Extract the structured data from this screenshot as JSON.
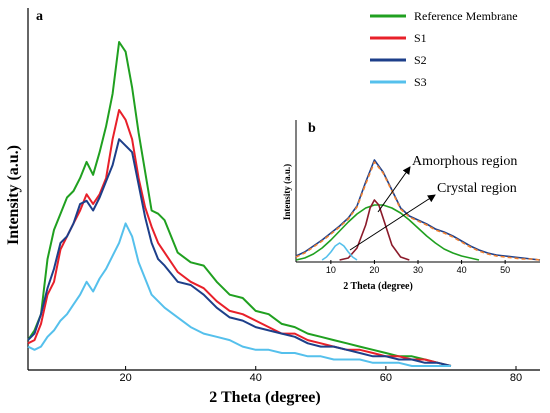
{
  "chart_data": [
    {
      "panel": "a",
      "type": "line",
      "xlabel": "2 Theta (degree)",
      "ylabel": "Intensity (a.u.)",
      "xlim": [
        5,
        80
      ],
      "xticks": [
        20,
        40,
        60,
        80
      ],
      "ylim": [
        0,
        100
      ],
      "grid": false,
      "legend_position": "top-right",
      "series": [
        {
          "name": "Reference Membrane",
          "color": "#20a020",
          "x": [
            5,
            6,
            7,
            8,
            9,
            10,
            11,
            12,
            13,
            14,
            15,
            16,
            17,
            18,
            19,
            20,
            21,
            22,
            23,
            24,
            25,
            26,
            28,
            30,
            32,
            34,
            36,
            38,
            40,
            42,
            44,
            46,
            48,
            50,
            52,
            54,
            56,
            58,
            60,
            62,
            64,
            66,
            68,
            70
          ],
          "y": [
            8,
            11,
            16,
            33,
            42,
            47,
            52,
            54,
            58,
            63,
            59,
            66,
            74,
            84,
            100,
            97,
            86,
            72,
            60,
            48,
            47,
            45,
            35,
            32,
            31,
            26,
            22,
            21,
            17,
            16,
            13,
            12,
            10,
            9,
            8,
            7,
            6,
            5,
            4,
            3,
            3,
            2,
            1,
            0
          ]
        },
        {
          "name": "S1",
          "color": "#e8202a",
          "x": [
            5,
            6,
            7,
            8,
            9,
            10,
            11,
            12,
            13,
            14,
            15,
            16,
            17,
            18,
            19,
            20,
            21,
            22,
            23,
            24,
            25,
            26,
            28,
            30,
            32,
            34,
            36,
            38,
            40,
            42,
            44,
            46,
            48,
            50,
            52,
            54,
            56,
            58,
            60,
            62,
            64,
            66,
            68,
            70
          ],
          "y": [
            7,
            8,
            13,
            22,
            26,
            36,
            40,
            44,
            48,
            53,
            50,
            53,
            58,
            70,
            79,
            76,
            70,
            58,
            49,
            43,
            38,
            35,
            29,
            26,
            24,
            20,
            17,
            16,
            14,
            12,
            10,
            10,
            8,
            7,
            6,
            5,
            5,
            4,
            3,
            3,
            2,
            2,
            1,
            0
          ]
        },
        {
          "name": "S2",
          "color": "#1d3f8a",
          "x": [
            5,
            6,
            7,
            8,
            9,
            10,
            11,
            12,
            13,
            14,
            15,
            16,
            17,
            18,
            19,
            20,
            21,
            22,
            23,
            24,
            25,
            26,
            28,
            30,
            32,
            34,
            36,
            38,
            40,
            42,
            44,
            46,
            48,
            50,
            52,
            54,
            56,
            58,
            60,
            62,
            64,
            66,
            68,
            70
          ],
          "y": [
            8,
            10,
            16,
            24,
            30,
            38,
            40,
            44,
            50,
            51,
            48,
            52,
            57,
            62,
            70,
            68,
            66,
            56,
            46,
            38,
            33,
            31,
            26,
            25,
            22,
            18,
            15,
            14,
            12,
            11,
            10,
            9,
            7,
            6,
            6,
            5,
            4,
            3,
            3,
            2,
            2,
            1,
            1,
            0
          ]
        },
        {
          "name": "S3",
          "color": "#55c0ec",
          "x": [
            5,
            6,
            7,
            8,
            9,
            10,
            11,
            12,
            13,
            14,
            15,
            16,
            17,
            18,
            19,
            20,
            21,
            22,
            23,
            24,
            25,
            26,
            28,
            30,
            32,
            34,
            36,
            38,
            40,
            42,
            44,
            46,
            48,
            50,
            52,
            54,
            56,
            58,
            60,
            62,
            64,
            66,
            68,
            70
          ],
          "y": [
            6,
            5,
            6,
            9,
            11,
            14,
            16,
            19,
            22,
            26,
            23,
            27,
            30,
            34,
            38,
            44,
            40,
            32,
            27,
            22,
            20,
            18,
            15,
            12,
            10,
            9,
            8,
            6,
            5,
            5,
            4,
            4,
            3,
            3,
            2,
            2,
            2,
            1,
            1,
            1,
            0,
            0,
            0,
            0
          ]
        }
      ]
    },
    {
      "panel": "b",
      "type": "line",
      "xlabel": "2 Theta (degree)",
      "ylabel": "Intensity (a.u.)",
      "xlim": [
        2,
        58
      ],
      "xticks": [
        10,
        20,
        30,
        40,
        50
      ],
      "ylim": [
        0,
        100
      ],
      "grid": false,
      "annotations": [
        "Amorphous region",
        "Crystal region"
      ],
      "series": [
        {
          "color": "#1d3f8a",
          "x": [
            2,
            4,
            6,
            8,
            10,
            12,
            14,
            16,
            18,
            20,
            22,
            24,
            26,
            28,
            30,
            32,
            34,
            36,
            38,
            40,
            42,
            44,
            46,
            48,
            50,
            52,
            54,
            56,
            58
          ],
          "y": [
            4,
            8,
            14,
            20,
            27,
            34,
            42,
            54,
            78,
            100,
            88,
            70,
            52,
            44,
            40,
            36,
            31,
            28,
            24,
            19,
            14,
            10,
            7,
            5,
            4,
            3,
            2,
            1,
            0
          ]
        },
        {
          "color": "#f08030",
          "x": [
            2,
            4,
            6,
            8,
            10,
            12,
            14,
            16,
            18,
            20,
            22,
            24,
            26,
            28,
            30,
            32,
            34,
            36,
            38,
            40,
            42,
            44,
            46,
            48,
            50,
            52,
            54,
            56,
            58
          ],
          "y": [
            3,
            7,
            13,
            19,
            26,
            33,
            41,
            53,
            76,
            98,
            87,
            69,
            51,
            43,
            39,
            35,
            30,
            27,
            23,
            18,
            13,
            9,
            6,
            4,
            3,
            2,
            1,
            1,
            0
          ]
        },
        {
          "color": "#20a020",
          "x": [
            2,
            4,
            6,
            8,
            10,
            12,
            14,
            16,
            18,
            20,
            22,
            24,
            26,
            28,
            30,
            32,
            34,
            36,
            38,
            40,
            42,
            44
          ],
          "y": [
            0,
            2,
            6,
            12,
            20,
            29,
            38,
            46,
            52,
            55,
            55,
            52,
            47,
            40,
            32,
            24,
            17,
            11,
            7,
            4,
            2,
            0
          ]
        },
        {
          "color": "#8b1a2a",
          "x": [
            12,
            14,
            16,
            18,
            19,
            20,
            21,
            22,
            24,
            26,
            28
          ],
          "y": [
            0,
            2,
            12,
            35,
            52,
            60,
            55,
            42,
            15,
            3,
            0
          ]
        },
        {
          "color": "#55c0ec",
          "x": [
            8,
            9,
            10,
            11,
            12,
            13,
            14,
            15,
            16
          ],
          "y": [
            0,
            3,
            8,
            14,
            17,
            14,
            8,
            3,
            0
          ]
        }
      ]
    }
  ],
  "panel_labels": {
    "a": "a",
    "b": "b"
  }
}
